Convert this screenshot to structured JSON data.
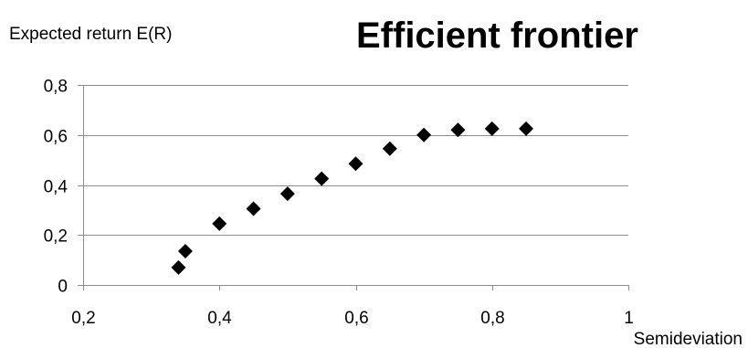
{
  "chart_data": {
    "type": "scatter",
    "title": "Efficient frontier",
    "xlabel": "Semideviation",
    "ylabel": "Expected return E(R)",
    "xlim": [
      0.2,
      1
    ],
    "ylim": [
      0,
      0.8
    ],
    "x_ticks": [
      "0,2",
      "0,4",
      "0,6",
      "0,8",
      "1"
    ],
    "y_ticks": [
      "0",
      "0,2",
      "0,4",
      "0,6",
      "0,8"
    ],
    "grid": true,
    "marker": "diamond",
    "marker_color": "#000000",
    "series": [
      {
        "x": [
          0.34,
          0.35,
          0.4,
          0.45,
          0.5,
          0.55,
          0.6,
          0.65,
          0.7,
          0.75,
          0.8,
          0.85
        ],
        "y": [
          0.07,
          0.135,
          0.245,
          0.305,
          0.365,
          0.425,
          0.485,
          0.545,
          0.6,
          0.62,
          0.625,
          0.625
        ]
      }
    ]
  }
}
